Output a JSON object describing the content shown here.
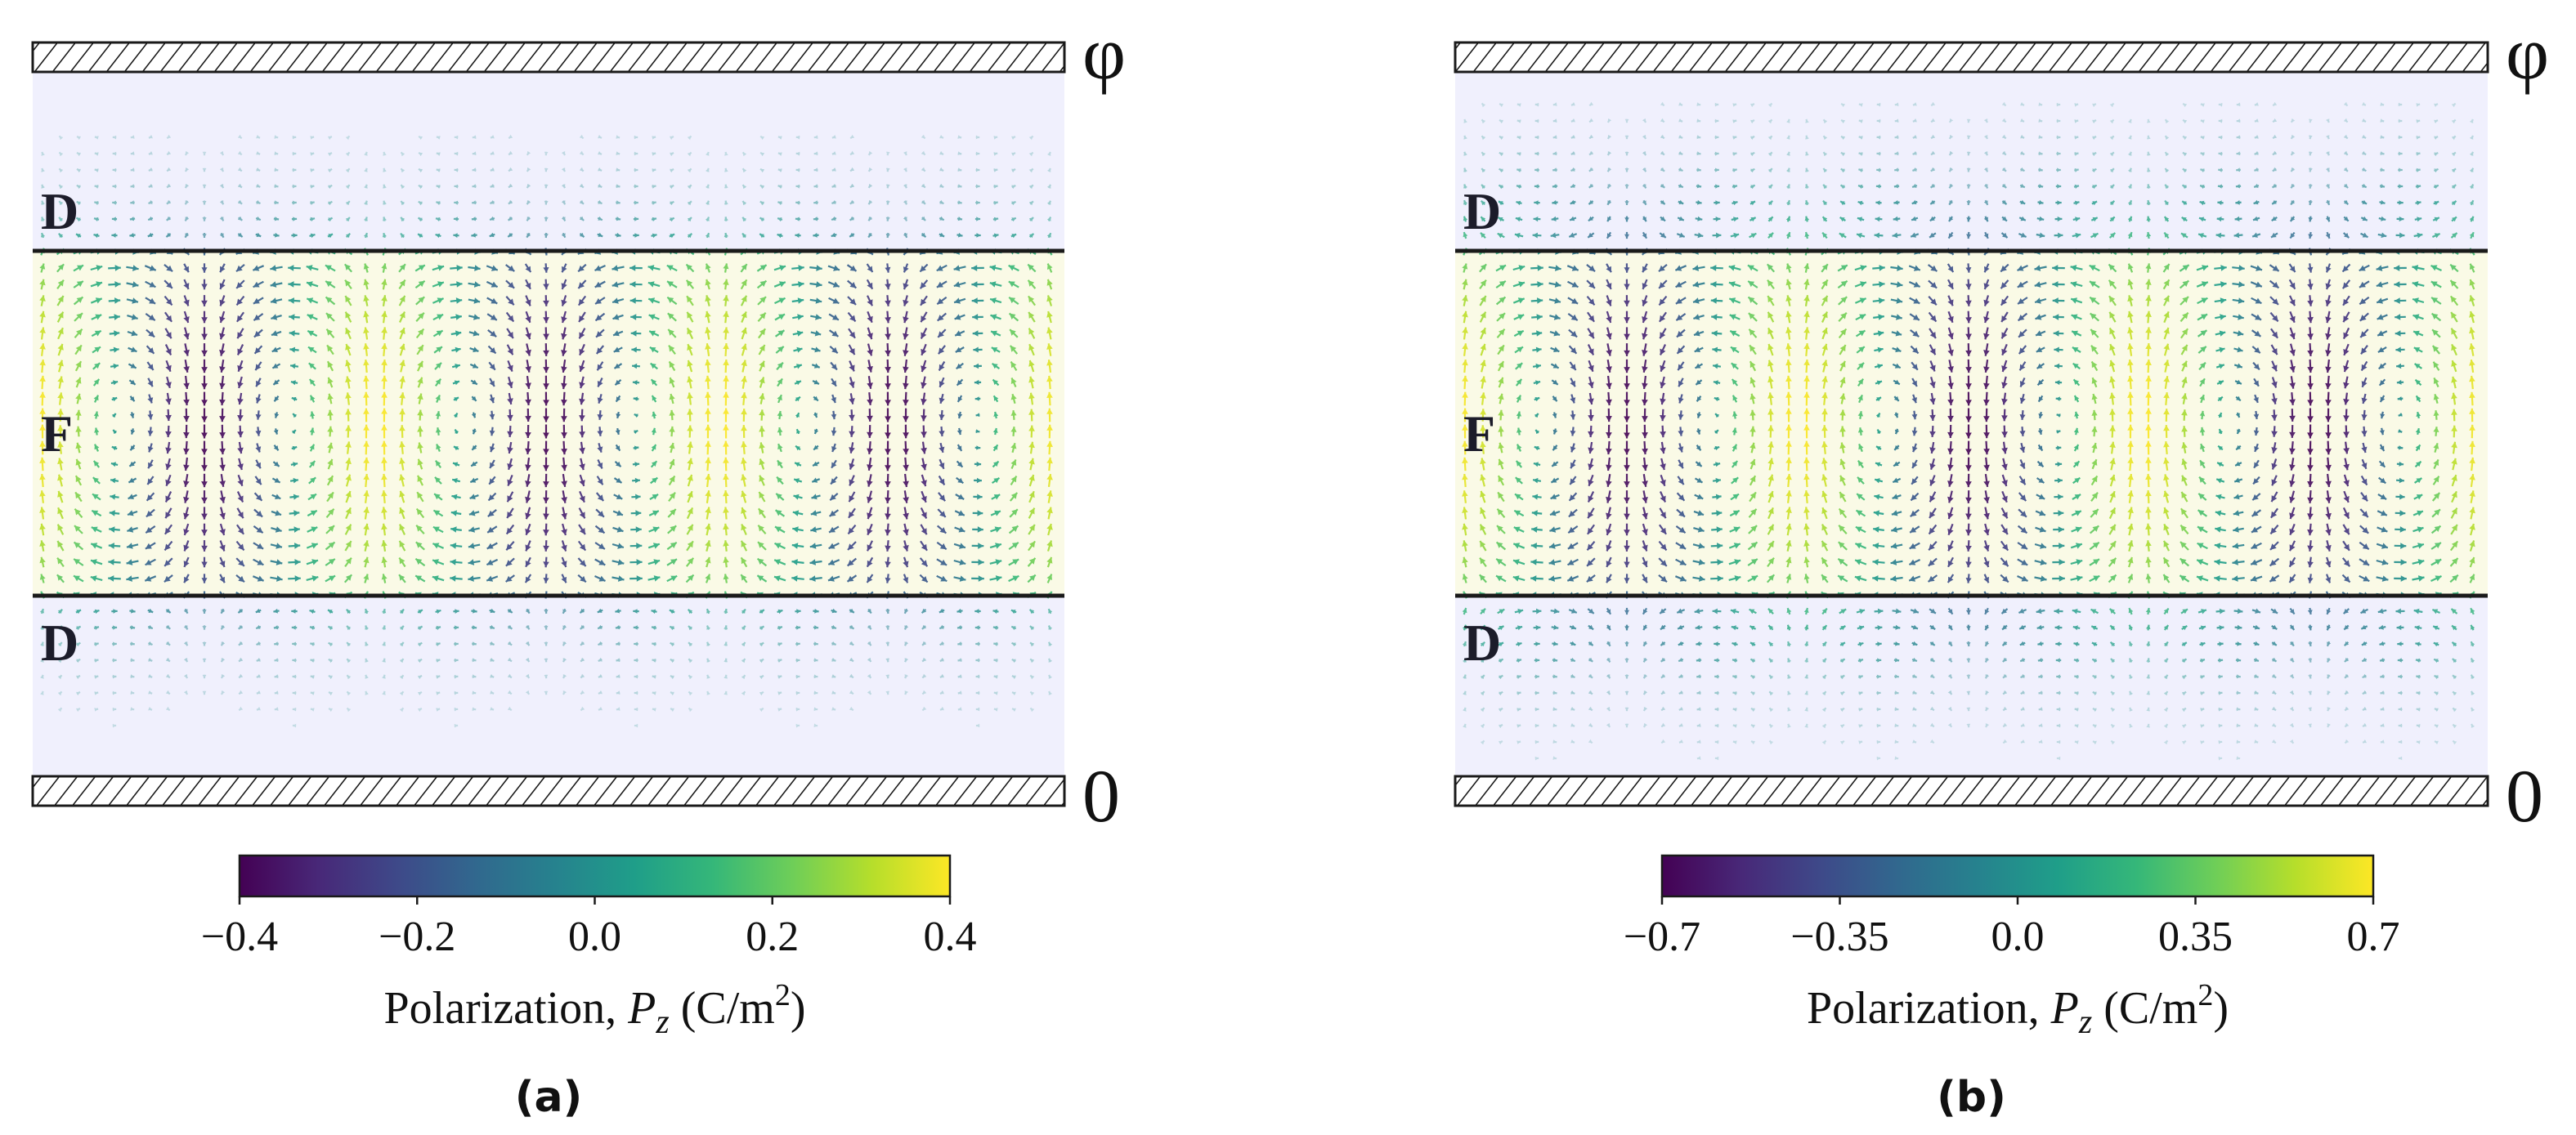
{
  "colors": {
    "dielectric_fill": "#f0f0fd",
    "ferro_fill": "#fafae6",
    "line": "#1a1a1a",
    "viridis": [
      "#440154",
      "#482878",
      "#3e4989",
      "#31688e",
      "#26828e",
      "#1f9e89",
      "#35b779",
      "#6ece58",
      "#b5de2b",
      "#fde725"
    ]
  },
  "panels": [
    {
      "id": "a",
      "caption": "(a)",
      "top_electrode_label": "φ",
      "bottom_electrode_label": "0",
      "layer_labels": {
        "top": "D",
        "middle": "F",
        "bottom": "D"
      },
      "colorbar": {
        "label_prefix": "Polarization, ",
        "label_var": "P",
        "label_sub": "z",
        "label_unit_pre": " (C/m",
        "label_unit_sup": "2",
        "label_unit_post": ")",
        "vmin": -0.4,
        "vmax": 0.4,
        "ticks": [
          -0.4,
          -0.2,
          0.0,
          0.2,
          0.4
        ],
        "tick_labels": [
          "−0.4",
          "−0.2",
          "0.0",
          "0.2",
          "0.4"
        ]
      },
      "field": {
        "domain_period_fraction": 0.3333,
        "amplitude": 0.4,
        "leakage": 0.12
      }
    },
    {
      "id": "b",
      "caption": "(b)",
      "top_electrode_label": "φ",
      "bottom_electrode_label": "0",
      "layer_labels": {
        "top": "D",
        "middle": "F",
        "bottom": "D"
      },
      "colorbar": {
        "label_prefix": "Polarization, ",
        "label_var": "P",
        "label_sub": "z",
        "label_unit_pre": " (C/m",
        "label_unit_sup": "2",
        "label_unit_post": ")",
        "vmin": -0.7,
        "vmax": 0.7,
        "ticks": [
          -0.7,
          -0.35,
          0.0,
          0.35,
          0.7
        ],
        "tick_labels": [
          "−0.7",
          "−0.35",
          "0.0",
          "0.35",
          "0.7"
        ]
      },
      "field": {
        "domain_period_fraction": 0.3333,
        "amplitude": 0.7,
        "leakage": 0.25
      }
    }
  ]
}
